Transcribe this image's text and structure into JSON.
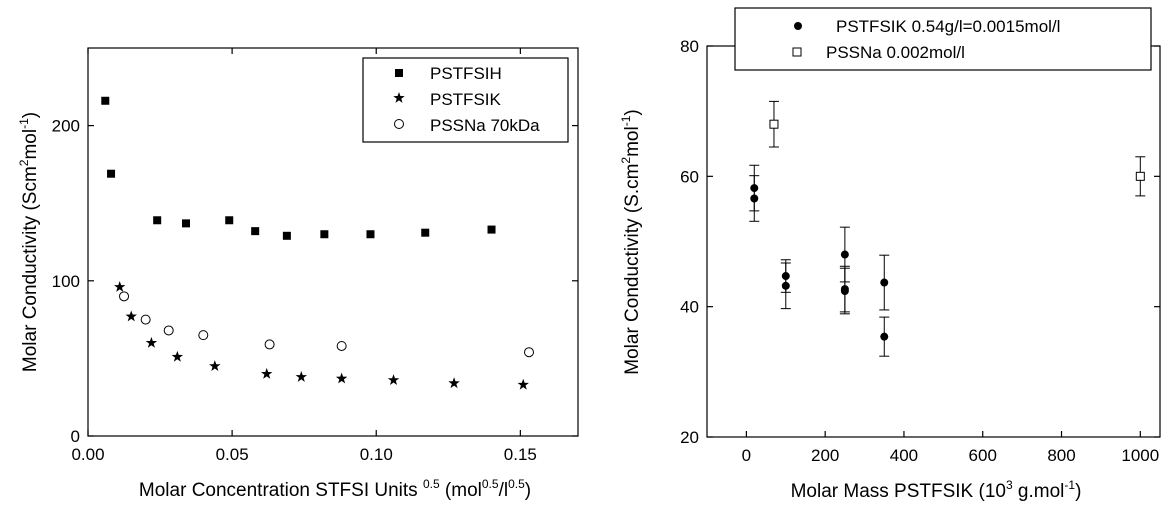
{
  "chart_data": [
    {
      "type": "scatter",
      "xlabel": {
        "main": "Molar Concentration STFSI Units ",
        "sup1": "0.5",
        "mid": " (mol",
        "sup2": "0.5",
        "mid2": "/l",
        "sup3": "0.5",
        "end": ")"
      },
      "ylabel": {
        "main": "Molar Conductivity (Scm",
        "sup1": "2",
        "mid": "mol",
        "sup2": "-1",
        "end": ")"
      },
      "xlim": [
        0.0,
        0.17
      ],
      "ylim": [
        0,
        250
      ],
      "xticks": [
        0.0,
        0.05,
        0.1,
        0.15
      ],
      "xtick_labels": [
        "0.00",
        "0.05",
        "0.10",
        "0.15"
      ],
      "yticks": [
        0,
        100,
        200
      ],
      "ytick_labels": [
        "0",
        "100",
        "200"
      ],
      "legend_position": "top-right",
      "series": [
        {
          "name": "PSTFSIH",
          "marker": "square-filled",
          "x": [
            0.006,
            0.008,
            0.024,
            0.034,
            0.049,
            0.058,
            0.069,
            0.082,
            0.098,
            0.117,
            0.14
          ],
          "y": [
            216,
            169,
            139,
            137,
            139,
            132,
            129,
            130,
            130,
            131,
            133
          ]
        },
        {
          "name": "PSTFSIK",
          "marker": "star",
          "x": [
            0.011,
            0.015,
            0.022,
            0.031,
            0.044,
            0.062,
            0.074,
            0.088,
            0.106,
            0.127,
            0.151
          ],
          "y": [
            96,
            77,
            60,
            51,
            45,
            40,
            38,
            37,
            36,
            34,
            33
          ]
        },
        {
          "name": "PSSNa 70kDa",
          "marker": "circle-open",
          "x": [
            0.0125,
            0.02,
            0.028,
            0.04,
            0.063,
            0.088,
            0.153
          ],
          "y": [
            90,
            75,
            68,
            65,
            59,
            58,
            54
          ]
        }
      ]
    },
    {
      "type": "scatter",
      "xlabel": {
        "main": "Molar Mass PSTFSIK (10",
        "sup1": "3",
        "mid": " g.mol",
        "sup2": "-1",
        "end": ")"
      },
      "ylabel": {
        "main": "Molar Conductivity (S.cm",
        "sup1": "2",
        "mid": "mol",
        "sup2": "-1",
        "end": ")"
      },
      "xlim": [
        -100,
        1050
      ],
      "ylim": [
        20,
        80
      ],
      "xticks": [
        0,
        200,
        400,
        600,
        800,
        1000
      ],
      "xtick_labels": [
        "0",
        "200",
        "400",
        "600",
        "800",
        "1000"
      ],
      "yticks": [
        20,
        40,
        60,
        80
      ],
      "ytick_labels": [
        "20",
        "40",
        "60",
        "80"
      ],
      "legend_position": "top",
      "series": [
        {
          "name": "PSTFSIK 0.54g/l=0.0015mol/l",
          "marker": "circle-filled",
          "points": [
            {
              "x": 20,
              "y": 58.2,
              "err": 3.5
            },
            {
              "x": 20,
              "y": 56.6,
              "err": 3.5
            },
            {
              "x": 100,
              "y": 44.7,
              "err": 2.5
            },
            {
              "x": 100,
              "y": 43.2,
              "err": 3.5
            },
            {
              "x": 250,
              "y": 48.0,
              "err": 4.2
            },
            {
              "x": 250,
              "y": 42.7,
              "err": 3.5
            },
            {
              "x": 250,
              "y": 42.4,
              "err": 3.5
            },
            {
              "x": 350,
              "y": 43.7,
              "err": 4.2
            },
            {
              "x": 350,
              "y": 35.4,
              "err": 3.0
            }
          ]
        },
        {
          "name": "PSSNa 0.002mol/l",
          "marker": "square-open",
          "points": [
            {
              "x": 70,
              "y": 68.0,
              "err": 3.5
            },
            {
              "x": 1000,
              "y": 60.0,
              "err": 3.0
            }
          ]
        }
      ]
    }
  ]
}
